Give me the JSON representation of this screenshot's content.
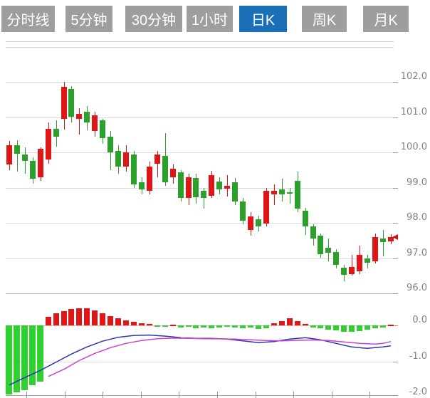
{
  "tabs": {
    "items": [
      {
        "label": "分时线",
        "active": false
      },
      {
        "label": "5分钟",
        "active": false
      },
      {
        "label": "30分钟",
        "active": false
      },
      {
        "label": "1小时",
        "active": false
      },
      {
        "label": "日K",
        "active": true
      },
      {
        "label": "周K",
        "active": false
      },
      {
        "label": "月K",
        "active": false
      }
    ],
    "active_bg": "#1b6fb8",
    "inactive_bg": "#9e9e9e",
    "text_color": "#ffffff"
  },
  "chart_data": {
    "type": "candlestick",
    "title": "",
    "legend_position": "none",
    "grid": true,
    "main_panel": {
      "ylabel": "price",
      "ylim": [
        96.0,
        103.0
      ],
      "y_tick_labels": [
        "102.0",
        "101.0",
        "100.0",
        "99.0",
        "98.0",
        "97.0",
        "96.0"
      ],
      "y_tick_values": [
        102.0,
        101.0,
        100.0,
        99.0,
        98.0,
        97.0,
        96.0
      ],
      "up_color": "#e01515",
      "down_color": "#2ba02b",
      "last_price_marker": 97.6,
      "marker_color": "#d01010",
      "candles": [
        {
          "o": 99.65,
          "h": 100.32,
          "l": 99.5,
          "c": 100.2
        },
        {
          "o": 100.2,
          "h": 100.35,
          "l": 99.45,
          "c": 99.95
        },
        {
          "o": 99.95,
          "h": 100.15,
          "l": 99.4,
          "c": 99.75
        },
        {
          "o": 99.75,
          "h": 99.85,
          "l": 99.1,
          "c": 99.25
        },
        {
          "o": 99.3,
          "h": 100.15,
          "l": 99.2,
          "c": 100.1
        },
        {
          "o": 99.8,
          "h": 100.85,
          "l": 99.67,
          "c": 100.67
        },
        {
          "o": 100.67,
          "h": 100.9,
          "l": 100.15,
          "c": 100.45
        },
        {
          "o": 100.95,
          "h": 102.0,
          "l": 100.65,
          "c": 101.85
        },
        {
          "o": 101.8,
          "h": 101.87,
          "l": 100.85,
          "c": 101.0
        },
        {
          "o": 100.95,
          "h": 101.25,
          "l": 100.5,
          "c": 101.1
        },
        {
          "o": 101.15,
          "h": 101.32,
          "l": 100.63,
          "c": 100.85
        },
        {
          "o": 100.6,
          "h": 101.15,
          "l": 100.45,
          "c": 101.05
        },
        {
          "o": 100.9,
          "h": 100.95,
          "l": 100.25,
          "c": 100.4
        },
        {
          "o": 100.45,
          "h": 100.6,
          "l": 99.5,
          "c": 100.0
        },
        {
          "o": 100.05,
          "h": 100.2,
          "l": 99.4,
          "c": 99.6
        },
        {
          "o": 99.6,
          "h": 100.2,
          "l": 99.45,
          "c": 100.0
        },
        {
          "o": 99.95,
          "h": 100.05,
          "l": 99.0,
          "c": 99.1
        },
        {
          "o": 99.15,
          "h": 99.3,
          "l": 98.8,
          "c": 98.95
        },
        {
          "o": 98.9,
          "h": 99.73,
          "l": 98.8,
          "c": 99.6
        },
        {
          "o": 99.68,
          "h": 100.05,
          "l": 99.3,
          "c": 99.95
        },
        {
          "o": 99.9,
          "h": 100.55,
          "l": 99.05,
          "c": 99.15
        },
        {
          "o": 99.3,
          "h": 99.65,
          "l": 99.1,
          "c": 99.53
        },
        {
          "o": 99.43,
          "h": 99.5,
          "l": 98.6,
          "c": 98.7
        },
        {
          "o": 98.7,
          "h": 99.4,
          "l": 98.5,
          "c": 99.3
        },
        {
          "o": 99.28,
          "h": 99.4,
          "l": 98.55,
          "c": 98.73
        },
        {
          "o": 98.9,
          "h": 99.0,
          "l": 98.4,
          "c": 98.7
        },
        {
          "o": 98.76,
          "h": 99.48,
          "l": 98.7,
          "c": 99.35
        },
        {
          "o": 99.17,
          "h": 99.3,
          "l": 98.8,
          "c": 98.95
        },
        {
          "o": 98.97,
          "h": 99.35,
          "l": 98.75,
          "c": 99.05
        },
        {
          "o": 99.15,
          "h": 99.27,
          "l": 98.5,
          "c": 98.6
        },
        {
          "o": 98.6,
          "h": 98.7,
          "l": 97.95,
          "c": 98.05
        },
        {
          "o": 97.8,
          "h": 98.3,
          "l": 97.63,
          "c": 98.18
        },
        {
          "o": 98.1,
          "h": 98.2,
          "l": 97.75,
          "c": 97.9
        },
        {
          "o": 97.98,
          "h": 99.0,
          "l": 97.9,
          "c": 98.9
        },
        {
          "o": 98.8,
          "h": 99.1,
          "l": 98.5,
          "c": 98.9
        },
        {
          "o": 98.95,
          "h": 99.25,
          "l": 98.6,
          "c": 98.8
        },
        {
          "o": 98.86,
          "h": 99.0,
          "l": 98.55,
          "c": 98.82
        },
        {
          "o": 99.2,
          "h": 99.45,
          "l": 98.3,
          "c": 98.4
        },
        {
          "o": 98.35,
          "h": 98.42,
          "l": 97.65,
          "c": 97.9
        },
        {
          "o": 97.9,
          "h": 97.97,
          "l": 97.35,
          "c": 97.55
        },
        {
          "o": 97.63,
          "h": 97.7,
          "l": 97.0,
          "c": 97.11
        },
        {
          "o": 97.3,
          "h": 97.55,
          "l": 96.9,
          "c": 97.15
        },
        {
          "o": 97.18,
          "h": 97.25,
          "l": 96.7,
          "c": 96.8
        },
        {
          "o": 96.73,
          "h": 96.8,
          "l": 96.35,
          "c": 96.52
        },
        {
          "o": 96.55,
          "h": 97.1,
          "l": 96.5,
          "c": 96.75
        },
        {
          "o": 96.62,
          "h": 97.35,
          "l": 96.55,
          "c": 97.1
        },
        {
          "o": 97.0,
          "h": 97.1,
          "l": 96.7,
          "c": 96.87
        },
        {
          "o": 96.9,
          "h": 97.7,
          "l": 96.85,
          "c": 97.6
        },
        {
          "o": 97.55,
          "h": 97.8,
          "l": 97.05,
          "c": 97.45
        },
        {
          "o": 97.47,
          "h": 97.68,
          "l": 97.4,
          "c": 97.6
        }
      ]
    },
    "macd_panel": {
      "ylabel": "MACD",
      "ylim": [
        -2.0,
        0.5
      ],
      "y_tick_labels": [
        "0.0",
        "-1.0",
        "-2.0"
      ],
      "y_tick_values": [
        0.0,
        -1.0,
        -2.0
      ],
      "positive_color": "#e01515",
      "negative_color": "#2fd12f",
      "dif_color": "#2b35b2",
      "dea_color": "#cf3fcf",
      "histogram": [
        -1.92,
        -1.86,
        -1.8,
        -1.66,
        -1.56,
        0.24,
        0.34,
        0.4,
        0.46,
        0.48,
        0.48,
        0.42,
        0.34,
        0.26,
        0.2,
        0.14,
        0.1,
        0.07,
        0.04,
        -0.02,
        -0.04,
        0.03,
        -0.05,
        -0.04,
        -0.07,
        -0.06,
        -0.07,
        -0.06,
        -0.04,
        -0.06,
        -0.08,
        -0.06,
        -0.09,
        -0.07,
        0.06,
        0.12,
        0.2,
        0.12,
        0.04,
        -0.06,
        -0.08,
        -0.11,
        -0.14,
        -0.17,
        -0.18,
        -0.16,
        -0.12,
        -0.08,
        -0.05,
        0.03
      ],
      "dif_points": [
        [
          0,
          -1.66
        ],
        [
          2,
          -1.45
        ],
        [
          4,
          -1.25
        ],
        [
          6,
          -1.02
        ],
        [
          8,
          -0.8
        ],
        [
          10,
          -0.6
        ],
        [
          12,
          -0.44
        ],
        [
          14,
          -0.33
        ],
        [
          16,
          -0.28
        ],
        [
          18,
          -0.27
        ],
        [
          20,
          -0.3
        ],
        [
          22,
          -0.34
        ],
        [
          24,
          -0.36
        ],
        [
          26,
          -0.36
        ],
        [
          28,
          -0.38
        ],
        [
          30,
          -0.43
        ],
        [
          32,
          -0.48
        ],
        [
          34,
          -0.45
        ],
        [
          36,
          -0.38
        ],
        [
          38,
          -0.34
        ],
        [
          40,
          -0.4
        ],
        [
          42,
          -0.5
        ],
        [
          44,
          -0.6
        ],
        [
          46,
          -0.64
        ],
        [
          48,
          -0.6
        ],
        [
          49,
          -0.57
        ]
      ],
      "dea_points": [
        [
          5,
          -1.42
        ],
        [
          7,
          -1.22
        ],
        [
          9,
          -0.98
        ],
        [
          11,
          -0.78
        ],
        [
          13,
          -0.62
        ],
        [
          15,
          -0.5
        ],
        [
          17,
          -0.42
        ],
        [
          19,
          -0.37
        ],
        [
          21,
          -0.355
        ],
        [
          23,
          -0.36
        ],
        [
          25,
          -0.37
        ],
        [
          27,
          -0.375
        ],
        [
          29,
          -0.38
        ],
        [
          31,
          -0.4
        ],
        [
          33,
          -0.42
        ],
        [
          35,
          -0.43
        ],
        [
          37,
          -0.415
        ],
        [
          39,
          -0.405
        ],
        [
          41,
          -0.42
        ],
        [
          43,
          -0.46
        ],
        [
          45,
          -0.5
        ],
        [
          47,
          -0.52
        ],
        [
          48,
          -0.5
        ],
        [
          49,
          -0.45
        ]
      ]
    }
  }
}
